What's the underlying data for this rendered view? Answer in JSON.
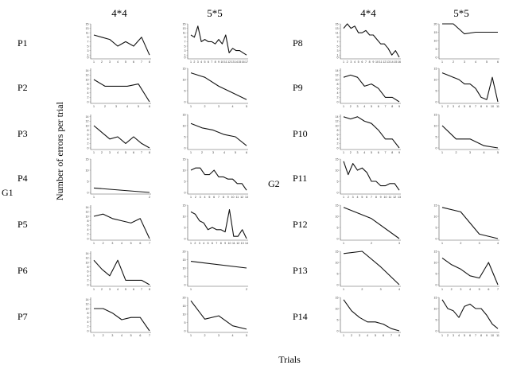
{
  "column_headers": [
    {
      "id": "h-left-44",
      "label": "4*4",
      "half": "left",
      "cond": "4x4"
    },
    {
      "id": "h-left-55",
      "label": "5*5",
      "half": "left",
      "cond": "5x5"
    },
    {
      "id": "h-right-44",
      "label": "4*4",
      "half": "right",
      "cond": "4x4"
    },
    {
      "id": "h-right-55",
      "label": "5*5",
      "half": "right",
      "cond": "5x5"
    }
  ],
  "groups": [
    {
      "label": "G1",
      "half": "left"
    },
    {
      "label": "G2",
      "half": "right"
    }
  ],
  "y_axis_title": "Number of errors per trial",
  "x_axis_title": "Trials",
  "chart_data": [
    {
      "type": "line",
      "panel": "P1-4x4",
      "participant": "P1",
      "group": "G1",
      "condition": "4*4",
      "ylim": [
        0,
        15
      ],
      "y_ticks": [
        0,
        1,
        3,
        5,
        7,
        9,
        11,
        13,
        15
      ],
      "x": [
        1,
        2,
        3,
        4,
        5,
        6,
        7,
        8
      ],
      "values": [
        10,
        9,
        8,
        5,
        7,
        5,
        9,
        1
      ]
    },
    {
      "type": "line",
      "panel": "P1-5x5",
      "participant": "P1",
      "group": "G1",
      "condition": "5*5",
      "ylim": [
        0,
        15
      ],
      "y_ticks": [
        0,
        1,
        3,
        5,
        7,
        9,
        11,
        13,
        15
      ],
      "x": [
        1,
        2,
        3,
        4,
        5,
        6,
        7,
        8,
        9,
        10,
        11,
        12,
        13,
        14,
        15,
        16,
        17
      ],
      "values": [
        10,
        9,
        14,
        7,
        8,
        7,
        7,
        6,
        8,
        6,
        10,
        2,
        4,
        3,
        3,
        2,
        1
      ]
    },
    {
      "type": "line",
      "panel": "P2-4x4",
      "participant": "P2",
      "group": "G1",
      "condition": "4*4",
      "ylim": [
        0,
        15
      ],
      "y_ticks": [
        0,
        2,
        4,
        6,
        8,
        10,
        12,
        14
      ],
      "x": [
        1,
        2,
        3,
        4,
        5,
        6
      ],
      "values": [
        10,
        7,
        7,
        7,
        8,
        0
      ]
    },
    {
      "type": "line",
      "panel": "P2-5x5",
      "participant": "P2",
      "group": "G1",
      "condition": "5*5",
      "ylim": [
        0,
        15
      ],
      "y_ticks": [
        0,
        5,
        10,
        15
      ],
      "x": [
        1,
        2,
        3,
        4,
        5
      ],
      "values": [
        13,
        11,
        7,
        4,
        1
      ]
    },
    {
      "type": "line",
      "panel": "P3-4x4",
      "participant": "P3",
      "group": "G1",
      "condition": "4*4",
      "ylim": [
        0,
        15
      ],
      "y_ticks": [
        0,
        2,
        4,
        6,
        8,
        10,
        12,
        14
      ],
      "x": [
        1,
        2,
        3,
        4,
        5,
        6,
        7,
        8
      ],
      "values": [
        10,
        7,
        4,
        5,
        2,
        5,
        2,
        0
      ]
    },
    {
      "type": "line",
      "panel": "P3-5x5",
      "participant": "P3",
      "group": "G1",
      "condition": "5*5",
      "ylim": [
        0,
        15
      ],
      "y_ticks": [
        0,
        5,
        10,
        15
      ],
      "x": [
        1,
        2,
        3,
        4,
        5,
        6
      ],
      "values": [
        11,
        9,
        8,
        6,
        5,
        1
      ]
    },
    {
      "type": "line",
      "panel": "P4-4x4",
      "participant": "P4",
      "group": "G1",
      "condition": "4*4",
      "ylim": [
        0,
        15
      ],
      "y_ticks": [
        0,
        5,
        10,
        15
      ],
      "x": [
        1,
        2
      ],
      "values": [
        2,
        0
      ]
    },
    {
      "type": "line",
      "panel": "P4-5x5",
      "participant": "P4",
      "group": "G1",
      "condition": "5*5",
      "ylim": [
        0,
        15
      ],
      "y_ticks": [
        0,
        5,
        10,
        15
      ],
      "x": [
        1,
        2,
        3,
        4,
        5,
        6,
        7,
        8,
        9,
        10,
        11,
        12,
        13
      ],
      "values": [
        10,
        11,
        11,
        8,
        8,
        10,
        7,
        7,
        6,
        6,
        4,
        4,
        1
      ]
    },
    {
      "type": "line",
      "panel": "P5-4x4",
      "participant": "P5",
      "group": "G1",
      "condition": "4*4",
      "ylim": [
        0,
        15
      ],
      "y_ticks": [
        0,
        2,
        4,
        6,
        8,
        10,
        12,
        14
      ],
      "x": [
        1,
        2,
        3,
        4,
        5,
        6,
        7
      ],
      "values": [
        10,
        11,
        9,
        8,
        7,
        9,
        0
      ]
    },
    {
      "type": "line",
      "panel": "P5-5x5",
      "participant": "P5",
      "group": "G1",
      "condition": "5*5",
      "ylim": [
        0,
        15
      ],
      "y_ticks": [
        0,
        5,
        10,
        15
      ],
      "x": [
        1,
        2,
        3,
        4,
        5,
        6,
        7,
        8,
        9,
        10,
        11,
        12,
        13,
        14
      ],
      "values": [
        12,
        11,
        8,
        7,
        4,
        5,
        4,
        4,
        3,
        13,
        1,
        1,
        4,
        0
      ]
    },
    {
      "type": "line",
      "panel": "P6-4x4",
      "participant": "P6",
      "group": "G1",
      "condition": "4*4",
      "ylim": [
        0,
        15
      ],
      "y_ticks": [
        0,
        2,
        4,
        6,
        8,
        10,
        12,
        14
      ],
      "x": [
        1,
        2,
        3,
        4,
        5,
        6,
        7,
        8
      ],
      "values": [
        11,
        7,
        4,
        11,
        2,
        2,
        2,
        0
      ]
    },
    {
      "type": "line",
      "panel": "P6-5x5",
      "participant": "P6",
      "group": "G1",
      "condition": "5*5",
      "ylim": [
        0,
        20
      ],
      "y_ticks": [
        0,
        5,
        10,
        15,
        20
      ],
      "x": [
        1,
        2
      ],
      "values": [
        14,
        10
      ]
    },
    {
      "type": "line",
      "panel": "P7-4x4",
      "participant": "P7",
      "group": "G1",
      "condition": "4*4",
      "ylim": [
        0,
        15
      ],
      "y_ticks": [
        0,
        2,
        4,
        6,
        8,
        10,
        12,
        14
      ],
      "x": [
        1,
        2,
        3,
        4,
        5,
        6,
        7
      ],
      "values": [
        10,
        10,
        8,
        5,
        6,
        6,
        0
      ]
    },
    {
      "type": "line",
      "panel": "P7-5x5",
      "participant": "P7",
      "group": "G1",
      "condition": "5*5",
      "ylim": [
        0,
        20
      ],
      "y_ticks": [
        0,
        5,
        10,
        15,
        20
      ],
      "x": [
        1,
        2,
        3,
        4,
        5
      ],
      "values": [
        18,
        7,
        9,
        3,
        1
      ]
    },
    {
      "type": "line",
      "panel": "P8-4x4",
      "participant": "P8",
      "group": "G2",
      "condition": "4*4",
      "ylim": [
        0,
        15
      ],
      "y_ticks": [
        0,
        1,
        3,
        5,
        7,
        9,
        11,
        13,
        15
      ],
      "x": [
        1,
        2,
        3,
        4,
        5,
        6,
        7,
        8,
        9,
        10,
        11,
        12,
        13,
        14,
        15,
        16
      ],
      "values": [
        13,
        15,
        13,
        14,
        11,
        11,
        12,
        10,
        10,
        8,
        6,
        6,
        4,
        1,
        3,
        0
      ]
    },
    {
      "type": "line",
      "panel": "P8-5x5",
      "participant": "P8",
      "group": "G2",
      "condition": "5*5",
      "ylim": [
        0,
        20
      ],
      "y_ticks": [
        0,
        5,
        10,
        15,
        20
      ],
      "x": [
        1,
        2,
        3,
        4,
        5,
        6
      ],
      "values": [
        20,
        20,
        14,
        15,
        15,
        15
      ]
    },
    {
      "type": "line",
      "panel": "P9-4x4",
      "participant": "P9",
      "group": "G2",
      "condition": "4*4",
      "ylim": [
        0,
        15
      ],
      "y_ticks": [
        0,
        2,
        4,
        6,
        8,
        10,
        12,
        14
      ],
      "x": [
        1,
        2,
        3,
        4,
        5,
        6,
        7,
        8,
        9
      ],
      "values": [
        11,
        12,
        11,
        7,
        8,
        6,
        2,
        2,
        0
      ]
    },
    {
      "type": "line",
      "panel": "P9-5x5",
      "participant": "P9",
      "group": "G2",
      "condition": "5*5",
      "ylim": [
        0,
        15
      ],
      "y_ticks": [
        0,
        5,
        10,
        15
      ],
      "x": [
        1,
        2,
        3,
        4,
        5,
        6,
        7,
        8,
        9,
        10,
        11
      ],
      "values": [
        13,
        12,
        11,
        10,
        8,
        8,
        6,
        2,
        1,
        11,
        0
      ]
    },
    {
      "type": "line",
      "panel": "P10-4x4",
      "participant": "P10",
      "group": "G2",
      "condition": "4*4",
      "ylim": [
        0,
        15
      ],
      "y_ticks": [
        0,
        2,
        4,
        6,
        8,
        10,
        12,
        14
      ],
      "x": [
        1,
        2,
        3,
        4,
        5,
        6,
        7,
        8,
        9
      ],
      "values": [
        14,
        13,
        14,
        12,
        11,
        8,
        4,
        4,
        0
      ]
    },
    {
      "type": "line",
      "panel": "P10-5x5",
      "participant": "P10",
      "group": "G2",
      "condition": "5*5",
      "ylim": [
        0,
        15
      ],
      "y_ticks": [
        0,
        5,
        10,
        15
      ],
      "x": [
        1,
        2,
        3,
        4,
        5
      ],
      "values": [
        10,
        4,
        4,
        1,
        0
      ]
    },
    {
      "type": "line",
      "panel": "P11-4x4",
      "participant": "P11",
      "group": "G2",
      "condition": "4*4",
      "ylim": [
        0,
        15
      ],
      "y_ticks": [
        0,
        5,
        10,
        15
      ],
      "x": [
        1,
        2,
        3,
        4,
        5,
        6,
        7,
        8,
        9,
        10,
        11,
        12,
        13
      ],
      "values": [
        14,
        8,
        13,
        10,
        11,
        9,
        5,
        5,
        3,
        3,
        4,
        4,
        1
      ]
    },
    {
      "type": "line",
      "panel": "P12-4x4",
      "participant": "P12",
      "group": "G2",
      "condition": "4*4",
      "ylim": [
        0,
        15
      ],
      "y_ticks": [
        0,
        5,
        10,
        15
      ],
      "x": [
        1,
        2,
        3
      ],
      "values": [
        14,
        9,
        0
      ]
    },
    {
      "type": "line",
      "panel": "P12-5x5",
      "participant": "P12",
      "group": "G2",
      "condition": "5*5",
      "ylim": [
        0,
        15
      ],
      "y_ticks": [
        0,
        5,
        10,
        15
      ],
      "x": [
        1,
        2,
        3,
        4
      ],
      "values": [
        14,
        12,
        2,
        0
      ]
    },
    {
      "type": "line",
      "panel": "P13-4x4",
      "participant": "P13",
      "group": "G2",
      "condition": "4*4",
      "ylim": [
        0,
        15
      ],
      "y_ticks": [
        0,
        5,
        10,
        15
      ],
      "x": [
        1,
        2,
        3,
        4
      ],
      "values": [
        14,
        15,
        8,
        0
      ]
    },
    {
      "type": "line",
      "panel": "P13-5x5",
      "participant": "P13",
      "group": "G2",
      "condition": "5*5",
      "ylim": [
        0,
        15
      ],
      "y_ticks": [
        0,
        5,
        10,
        15
      ],
      "x": [
        1,
        2,
        3,
        4,
        5,
        6,
        7
      ],
      "values": [
        12,
        9,
        7,
        4,
        3,
        10,
        0
      ]
    },
    {
      "type": "line",
      "panel": "P14-4x4",
      "participant": "P14",
      "group": "G2",
      "condition": "4*4",
      "ylim": [
        0,
        15
      ],
      "y_ticks": [
        0,
        5,
        10,
        15
      ],
      "x": [
        1,
        2,
        3,
        4,
        5,
        6,
        7,
        8
      ],
      "values": [
        14,
        9,
        6,
        4,
        4,
        3,
        1,
        0
      ]
    },
    {
      "type": "line",
      "panel": "P14-5x5",
      "participant": "P14",
      "group": "G2",
      "condition": "5*5",
      "ylim": [
        0,
        15
      ],
      "y_ticks": [
        0,
        5,
        10,
        15
      ],
      "x": [
        1,
        2,
        3,
        4,
        5,
        6,
        7,
        8,
        9,
        10,
        11
      ],
      "values": [
        14,
        10,
        9,
        6,
        11,
        12,
        10,
        10,
        7,
        3,
        1
      ]
    }
  ]
}
